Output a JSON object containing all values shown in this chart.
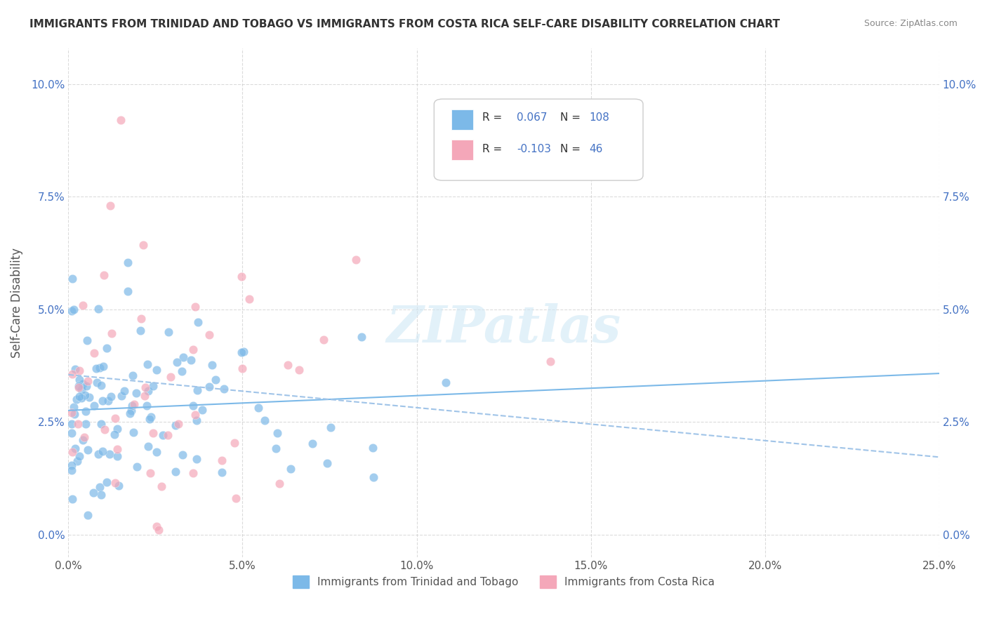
{
  "title": "IMMIGRANTS FROM TRINIDAD AND TOBAGO VS IMMIGRANTS FROM COSTA RICA SELF-CARE DISABILITY CORRELATION CHART",
  "source": "Source: ZipAtlas.com",
  "ylabel": "Self-Care Disability",
  "xlabel": "",
  "xlim": [
    0.0,
    0.25
  ],
  "ylim": [
    -0.005,
    0.105
  ],
  "xticks": [
    0.0,
    0.05,
    0.1,
    0.15,
    0.2,
    0.25
  ],
  "xtick_labels": [
    "0.0%",
    "5.0%",
    "10.0%",
    "15.0%",
    "20.0%",
    "25.0%"
  ],
  "yticks": [
    0.0,
    0.025,
    0.05,
    0.075,
    0.1
  ],
  "ytick_labels": [
    "0.0%",
    "2.5%",
    "5.0%",
    "7.5%",
    "10.0%"
  ],
  "series1_label": "Immigrants from Trinidad and Tobago",
  "series1_color": "#7cb9e8",
  "series1_R": 0.067,
  "series1_N": 108,
  "series2_label": "Immigrants from Costa Rica",
  "series2_color": "#f4a7b9",
  "series2_R": -0.103,
  "series2_N": 46,
  "watermark": "ZIPatlas",
  "background_color": "#ffffff",
  "grid_color": "#cccccc"
}
